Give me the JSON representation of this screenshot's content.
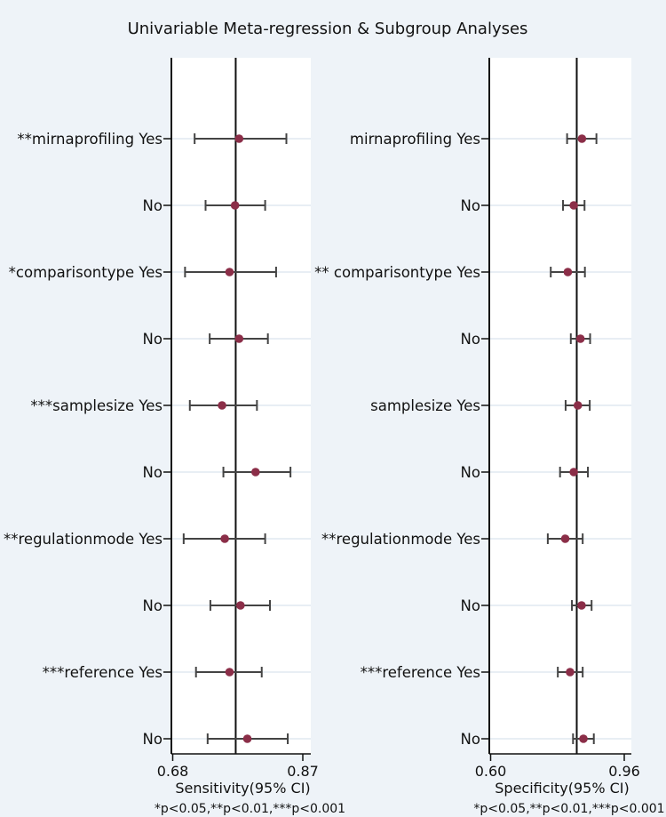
{
  "title": "Univariable Meta-regression & Subgroup Analyses",
  "chart_data": [
    {
      "type": "forest",
      "xlabel": "Sensitivity(95% CI)",
      "note": "*p<0.05,**p<0.01,***p<0.001",
      "xlim": [
        0.68,
        0.87
      ],
      "xticks": [
        0.68,
        0.87
      ],
      "tick_labels": [
        "0.68",
        "0.87"
      ],
      "reference_line": 0.772,
      "rows": [
        {
          "label": "**mirnaprofiling Yes",
          "estimate": 0.777,
          "lower": 0.712,
          "upper": 0.846
        },
        {
          "label": "No",
          "estimate": 0.771,
          "lower": 0.728,
          "upper": 0.815
        },
        {
          "label": "*comparisontype Yes",
          "estimate": 0.763,
          "lower": 0.698,
          "upper": 0.831
        },
        {
          "label": "No",
          "estimate": 0.777,
          "lower": 0.734,
          "upper": 0.819
        },
        {
          "label": "***samplesize Yes",
          "estimate": 0.752,
          "lower": 0.705,
          "upper": 0.803
        },
        {
          "label": "No",
          "estimate": 0.801,
          "lower": 0.754,
          "upper": 0.852
        },
        {
          "label": "**regulationmode Yes",
          "estimate": 0.756,
          "lower": 0.696,
          "upper": 0.815
        },
        {
          "label": "No",
          "estimate": 0.779,
          "lower": 0.735,
          "upper": 0.822
        },
        {
          "label": "***reference Yes",
          "estimate": 0.763,
          "lower": 0.714,
          "upper": 0.81
        },
        {
          "label": "No",
          "estimate": 0.789,
          "lower": 0.731,
          "upper": 0.848
        }
      ]
    },
    {
      "type": "forest",
      "xlabel": "Specificity(95% CI)",
      "note": "*p<0.05,**p<0.01,***p<0.001",
      "xlim": [
        0.6,
        0.96
      ],
      "xticks": [
        0.6,
        0.96
      ],
      "tick_labels": [
        "0.60",
        "0.96"
      ],
      "reference_line": 0.832,
      "rows": [
        {
          "label": "mirnaprofiling Yes",
          "estimate": 0.846,
          "lower": 0.806,
          "upper": 0.885
        },
        {
          "label": "No",
          "estimate": 0.824,
          "lower": 0.795,
          "upper": 0.853
        },
        {
          "label": "** comparisontype Yes",
          "estimate": 0.808,
          "lower": 0.762,
          "upper": 0.854
        },
        {
          "label": "No",
          "estimate": 0.842,
          "lower": 0.816,
          "upper": 0.868
        },
        {
          "label": "samplesize Yes",
          "estimate": 0.835,
          "lower": 0.802,
          "upper": 0.867
        },
        {
          "label": "No",
          "estimate": 0.824,
          "lower": 0.787,
          "upper": 0.862
        },
        {
          "label": "**regulationmode Yes",
          "estimate": 0.801,
          "lower": 0.754,
          "upper": 0.848
        },
        {
          "label": "No",
          "estimate": 0.845,
          "lower": 0.819,
          "upper": 0.872
        },
        {
          "label": "***reference Yes",
          "estimate": 0.814,
          "lower": 0.781,
          "upper": 0.848
        },
        {
          "label": "No",
          "estimate": 0.85,
          "lower": 0.822,
          "upper": 0.878
        }
      ]
    }
  ],
  "colors": {
    "background": "#eef3f8",
    "panel": "#ffffff",
    "gridline": "#e8eef4",
    "whisker": "#444444",
    "point": "#8b2e48",
    "axis": "#111111"
  }
}
